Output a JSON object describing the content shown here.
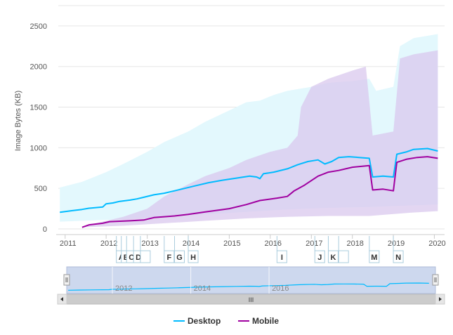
{
  "chart_data": {
    "type": "line",
    "ylabel": "Image Bytes (KB)",
    "ylim": [
      0,
      2750
    ],
    "yticks": [
      0,
      500,
      1000,
      1500,
      2000,
      2500
    ],
    "xlim": [
      "2010-11-01",
      "2020-04-01"
    ],
    "xticks": [
      "2011",
      "2012",
      "2013",
      "2014",
      "2015",
      "2016",
      "2017",
      "2018",
      "2019",
      "2020"
    ],
    "navigator_labels": [
      "2012",
      "2014",
      "2016"
    ],
    "legend_position": "bottom-center",
    "grid": true,
    "series": [
      {
        "name": "Desktop",
        "color": "#00bbff",
        "band_color": "#e3f8fd",
        "points": [
          [
            "2010-11-15",
            205
          ],
          [
            "2011-03-01",
            225
          ],
          [
            "2011-06-01",
            240
          ],
          [
            "2011-08-01",
            255
          ],
          [
            "2011-12-01",
            270
          ],
          [
            "2012-01-01",
            310
          ],
          [
            "2012-03-01",
            320
          ],
          [
            "2012-05-01",
            340
          ],
          [
            "2012-08-01",
            355
          ],
          [
            "2012-10-01",
            370
          ],
          [
            "2012-12-01",
            390
          ],
          [
            "2013-03-01",
            420
          ],
          [
            "2013-06-01",
            440
          ],
          [
            "2013-09-01",
            470
          ],
          [
            "2013-12-01",
            500
          ],
          [
            "2014-03-01",
            530
          ],
          [
            "2014-07-01",
            570
          ],
          [
            "2014-11-01",
            600
          ],
          [
            "2015-03-01",
            625
          ],
          [
            "2015-07-01",
            650
          ],
          [
            "2015-09-01",
            640
          ],
          [
            "2015-10-01",
            620
          ],
          [
            "2015-11-01",
            680
          ],
          [
            "2016-02-01",
            700
          ],
          [
            "2016-06-01",
            740
          ],
          [
            "2016-09-01",
            790
          ],
          [
            "2016-12-01",
            830
          ],
          [
            "2017-03-01",
            850
          ],
          [
            "2017-05-01",
            800
          ],
          [
            "2017-07-01",
            830
          ],
          [
            "2017-09-01",
            880
          ],
          [
            "2017-12-01",
            890
          ],
          [
            "2018-03-01",
            880
          ],
          [
            "2018-06-01",
            870
          ],
          [
            "2018-07-01",
            640
          ],
          [
            "2018-10-01",
            650
          ],
          [
            "2019-01-01",
            640
          ],
          [
            "2019-02-01",
            920
          ],
          [
            "2019-05-01",
            950
          ],
          [
            "2019-07-01",
            980
          ],
          [
            "2019-11-01",
            990
          ],
          [
            "2020-02-01",
            960
          ]
        ],
        "band_low": [
          [
            "2010-11-15",
            90
          ],
          [
            "2011-06-01",
            100
          ],
          [
            "2012-06-01",
            120
          ],
          [
            "2013-06-01",
            150
          ],
          [
            "2014-06-01",
            180
          ],
          [
            "2015-06-01",
            210
          ],
          [
            "2016-06-01",
            240
          ],
          [
            "2017-06-01",
            260
          ],
          [
            "2018-06-01",
            270
          ],
          [
            "2019-06-01",
            290
          ],
          [
            "2020-02-01",
            300
          ]
        ],
        "band_high": [
          [
            "2010-11-15",
            510
          ],
          [
            "2011-06-01",
            580
          ],
          [
            "2012-01-01",
            700
          ],
          [
            "2012-06-01",
            800
          ],
          [
            "2013-01-01",
            950
          ],
          [
            "2013-06-01",
            1070
          ],
          [
            "2014-01-01",
            1200
          ],
          [
            "2014-06-01",
            1320
          ],
          [
            "2015-01-01",
            1460
          ],
          [
            "2015-06-01",
            1560
          ],
          [
            "2015-10-01",
            1580
          ],
          [
            "2016-02-01",
            1650
          ],
          [
            "2016-06-01",
            1700
          ],
          [
            "2017-01-01",
            1750
          ],
          [
            "2017-06-01",
            1800
          ],
          [
            "2018-01-01",
            1820
          ],
          [
            "2018-06-01",
            1850
          ],
          [
            "2018-08-01",
            1700
          ],
          [
            "2019-01-01",
            1750
          ],
          [
            "2019-03-01",
            2250
          ],
          [
            "2019-07-01",
            2350
          ],
          [
            "2020-02-01",
            2400
          ]
        ]
      },
      {
        "name": "Mobile",
        "color": "#a000a0",
        "band_color": "#d9c8ee",
        "points": [
          [
            "2011-06-01",
            20
          ],
          [
            "2011-08-01",
            50
          ],
          [
            "2011-12-01",
            70
          ],
          [
            "2012-02-01",
            90
          ],
          [
            "2012-08-01",
            100
          ],
          [
            "2012-12-01",
            110
          ],
          [
            "2013-03-01",
            140
          ],
          [
            "2013-09-01",
            160
          ],
          [
            "2014-01-01",
            180
          ],
          [
            "2014-06-01",
            210
          ],
          [
            "2015-01-01",
            250
          ],
          [
            "2015-06-01",
            300
          ],
          [
            "2015-10-01",
            350
          ],
          [
            "2016-03-01",
            380
          ],
          [
            "2016-06-01",
            400
          ],
          [
            "2016-08-01",
            470
          ],
          [
            "2016-11-01",
            540
          ],
          [
            "2017-03-01",
            650
          ],
          [
            "2017-06-01",
            700
          ],
          [
            "2017-09-01",
            720
          ],
          [
            "2018-01-01",
            760
          ],
          [
            "2018-06-01",
            780
          ],
          [
            "2018-07-01",
            480
          ],
          [
            "2018-10-01",
            490
          ],
          [
            "2019-01-01",
            470
          ],
          [
            "2019-02-01",
            820
          ],
          [
            "2019-05-01",
            860
          ],
          [
            "2019-08-01",
            880
          ],
          [
            "2019-11-01",
            890
          ],
          [
            "2020-02-01",
            870
          ]
        ],
        "band_low": [
          [
            "2011-06-01",
            20
          ],
          [
            "2012-06-01",
            40
          ],
          [
            "2013-06-01",
            70
          ],
          [
            "2014-06-01",
            100
          ],
          [
            "2015-06-01",
            130
          ],
          [
            "2016-06-01",
            150
          ],
          [
            "2017-06-01",
            160
          ],
          [
            "2018-06-01",
            160
          ],
          [
            "2019-06-01",
            200
          ],
          [
            "2020-02-01",
            220
          ]
        ],
        "band_high": [
          [
            "2011-06-01",
            30
          ],
          [
            "2012-06-01",
            150
          ],
          [
            "2013-01-01",
            250
          ],
          [
            "2013-06-01",
            400
          ],
          [
            "2014-01-01",
            550
          ],
          [
            "2014-06-01",
            650
          ],
          [
            "2015-01-01",
            750
          ],
          [
            "2015-06-01",
            850
          ],
          [
            "2016-01-01",
            950
          ],
          [
            "2016-06-01",
            1000
          ],
          [
            "2016-09-01",
            1150
          ],
          [
            "2016-10-01",
            1500
          ],
          [
            "2017-01-01",
            1750
          ],
          [
            "2017-06-01",
            1850
          ],
          [
            "2018-01-01",
            1950
          ],
          [
            "2018-05-01",
            2000
          ],
          [
            "2018-07-01",
            1150
          ],
          [
            "2019-01-01",
            1200
          ],
          [
            "2019-03-01",
            2100
          ],
          [
            "2019-07-01",
            2150
          ],
          [
            "2020-02-01",
            2200
          ]
        ]
      }
    ],
    "flags": [
      {
        "label": "A",
        "date": "2012-04-01"
      },
      {
        "label": "B",
        "date": "2012-05-15"
      },
      {
        "label": "C",
        "date": "2012-07-01"
      },
      {
        "label": "D",
        "date": "2012-09-01"
      },
      {
        "label": "",
        "date": "2012-11-01"
      },
      {
        "label": "F",
        "date": "2013-06-01"
      },
      {
        "label": "G",
        "date": "2013-09-01"
      },
      {
        "label": "H",
        "date": "2014-01-01"
      },
      {
        "label": "I",
        "date": "2016-03-01"
      },
      {
        "label": "J",
        "date": "2017-02-01"
      },
      {
        "label": "K",
        "date": "2017-06-01"
      },
      {
        "label": "",
        "date": "2017-09-01"
      },
      {
        "label": "M",
        "date": "2018-06-01"
      },
      {
        "label": "N",
        "date": "2019-01-01"
      }
    ]
  },
  "navigator": {
    "scroll_grip": "III"
  },
  "legend": {
    "items": [
      {
        "name": "Desktop",
        "color": "#00bbff"
      },
      {
        "name": "Mobile",
        "color": "#a000a0"
      }
    ]
  }
}
